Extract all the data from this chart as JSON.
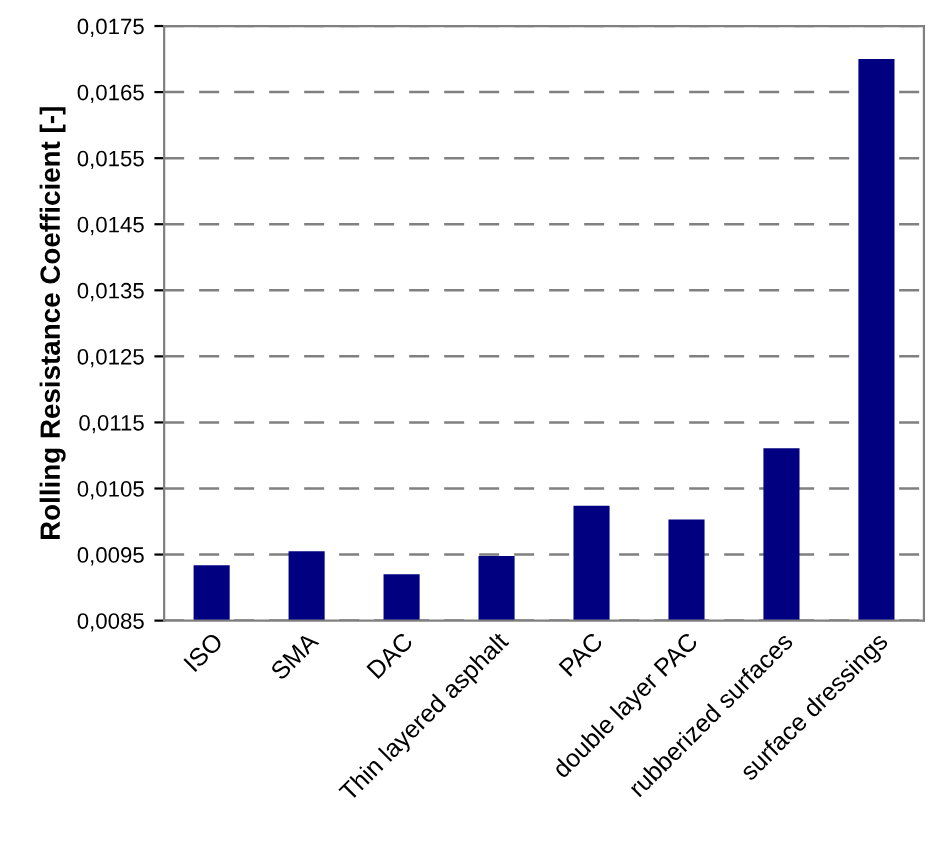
{
  "chart_data": {
    "type": "bar",
    "ylabel": "Rolling Resistance Coefficient [-]",
    "categories": [
      "ISO",
      "SMA",
      "DAC",
      "Thin layered asphalt",
      "PAC",
      "double layer PAC",
      "rubberized surfaces",
      "surface dressings"
    ],
    "values": [
      0.00934,
      0.00955,
      0.0092,
      0.00948,
      0.01024,
      0.01003,
      0.01111,
      0.017
    ],
    "color": "#000080",
    "ylim": [
      0.0085,
      0.0175
    ],
    "yticks": [
      {
        "value": 0.0085,
        "label": "0,0085"
      },
      {
        "value": 0.0095,
        "label": "0,0095"
      },
      {
        "value": 0.0105,
        "label": "0,0105"
      },
      {
        "value": 0.0115,
        "label": "0,0115"
      },
      {
        "value": 0.0125,
        "label": "0,0125"
      },
      {
        "value": 0.0135,
        "label": "0,0135"
      },
      {
        "value": 0.0145,
        "label": "0,0145"
      },
      {
        "value": 0.0155,
        "label": "0,0155"
      },
      {
        "value": 0.0165,
        "label": "0,0165"
      },
      {
        "value": 0.0175,
        "label": "0,0175"
      }
    ],
    "grid": "y"
  }
}
